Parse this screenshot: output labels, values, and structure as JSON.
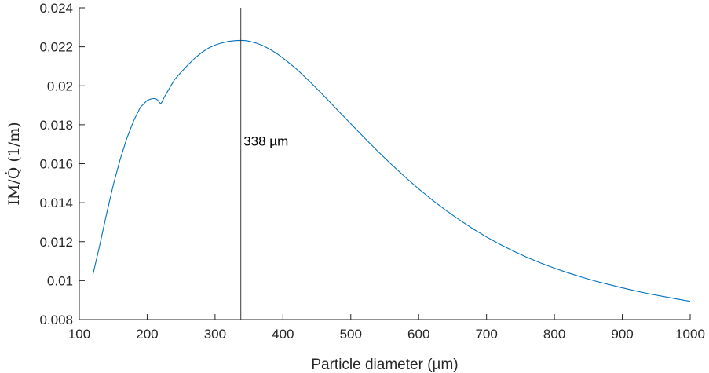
{
  "chart_data": {
    "type": "line",
    "xlabel": "Particle diameter (µm)",
    "ylabel": "IM/Q̇ (1/m)",
    "xlim": [
      100,
      1000
    ],
    "ylim": [
      0.008,
      0.024
    ],
    "x_ticks": [
      100,
      200,
      300,
      400,
      500,
      600,
      700,
      800,
      900,
      1000
    ],
    "y_ticks": [
      0.008,
      0.01,
      0.012,
      0.014,
      0.016,
      0.018,
      0.02,
      0.022,
      0.024
    ],
    "x_tick_labels": [
      "100",
      "200",
      "300",
      "400",
      "500",
      "600",
      "700",
      "800",
      "900",
      "1000"
    ],
    "y_tick_labels": [
      "0.008",
      "0.01",
      "0.012",
      "0.014",
      "0.016",
      "0.018",
      "0.02",
      "0.022",
      "0.024"
    ],
    "grid": false,
    "series": [
      {
        "color": "#0072BD",
        "x": [
          120,
          130,
          140,
          150,
          160,
          170,
          180,
          190,
          200,
          205,
          210,
          213,
          216,
          218,
          220,
          222,
          225,
          230,
          240,
          250,
          260,
          270,
          280,
          290,
          300,
          310,
          320,
          330,
          338,
          345,
          350,
          360,
          370,
          380,
          390,
          400,
          420,
          440,
          460,
          480,
          500,
          520,
          540,
          560,
          580,
          600,
          620,
          640,
          660,
          680,
          700,
          720,
          740,
          760,
          780,
          800,
          820,
          840,
          860,
          880,
          900,
          920,
          940,
          960,
          980,
          1000
        ],
        "y": [
          0.0103,
          0.0118,
          0.0134,
          0.0149,
          0.0162,
          0.0173,
          0.0182,
          0.0189,
          0.01925,
          0.01932,
          0.01935,
          0.01933,
          0.01925,
          0.01915,
          0.01908,
          0.01918,
          0.0194,
          0.0197,
          0.0203,
          0.0207,
          0.02107,
          0.02141,
          0.0217,
          0.02193,
          0.02209,
          0.0222,
          0.02228,
          0.02232,
          0.02233,
          0.02232,
          0.02229,
          0.0222,
          0.02207,
          0.02189,
          0.02168,
          0.02143,
          0.02086,
          0.0202,
          0.0195,
          0.01877,
          0.01805,
          0.01733,
          0.01663,
          0.01596,
          0.01532,
          0.01471,
          0.01414,
          0.01361,
          0.01312,
          0.01266,
          0.01224,
          0.01186,
          0.01151,
          0.01119,
          0.0109,
          0.01064,
          0.0104,
          0.01018,
          0.00998,
          0.0098,
          0.00963,
          0.00947,
          0.00932,
          0.00919,
          0.00906,
          0.00894
        ]
      }
    ],
    "vline_x": 338,
    "annotation": {
      "text": "338 µm",
      "x": 342,
      "y": 0.0166
    }
  }
}
